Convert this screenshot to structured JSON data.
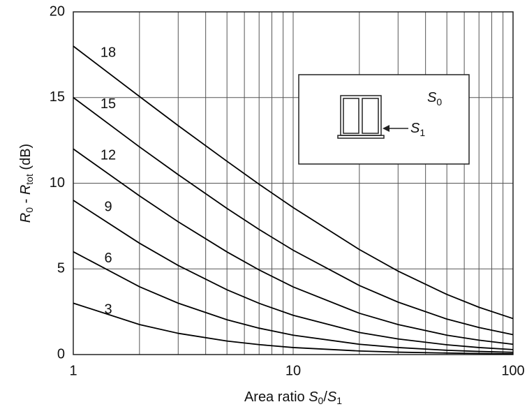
{
  "chart_data": {
    "type": "line",
    "xlabel": [
      "Area ratio ",
      "S",
      "0",
      "/",
      "S",
      "1"
    ],
    "ylabel": [
      "R",
      "0",
      " - ",
      "R",
      "tot",
      "  (dB)"
    ],
    "inset_labels": [
      [
        "S",
        "0"
      ],
      [
        "S",
        "1"
      ]
    ],
    "x": [
      1,
      2,
      3,
      5,
      7,
      10,
      20,
      30,
      50,
      70,
      100
    ],
    "series": [
      {
        "name": "18",
        "color": "#000000",
        "values": [
          18,
          15.06,
          13.36,
          11.28,
          9.94,
          8.58,
          6.13,
          4.87,
          3.51,
          2.76,
          2.1
        ]
      },
      {
        "name": "15",
        "color": "#000000",
        "values": [
          15,
          12.12,
          10.5,
          8.53,
          7.3,
          6.09,
          4.03,
          3.06,
          2.07,
          1.58,
          1.16
        ]
      },
      {
        "name": "12",
        "color": "#000000",
        "values": [
          12,
          9.26,
          7.75,
          5.99,
          4.94,
          3.95,
          2.41,
          1.75,
          1.13,
          0.84,
          0.6
        ]
      },
      {
        "name": "9",
        "color": "#000000",
        "values": [
          9,
          6.5,
          5.2,
          3.78,
          2.99,
          2.29,
          1.29,
          0.91,
          0.57,
          0.41,
          0.29
        ]
      },
      {
        "name": "6",
        "color": "#000000",
        "values": [
          6,
          3.96,
          3.0,
          2.03,
          1.54,
          1.13,
          0.6,
          0.41,
          0.25,
          0.18,
          0.13
        ]
      },
      {
        "name": "3",
        "color": "#000000",
        "values": [
          3,
          1.75,
          1.24,
          0.79,
          0.58,
          0.41,
          0.21,
          0.14,
          0.09,
          0.06,
          0.04
        ]
      }
    ],
    "xscale": "log",
    "xlim": [
      1,
      100
    ],
    "xticks": [
      1,
      10,
      100
    ],
    "xgrid_minor": [
      2,
      3,
      4,
      5,
      6,
      7,
      8,
      9,
      20,
      30,
      40,
      50,
      60,
      70,
      80,
      90
    ],
    "ylim": [
      0,
      20
    ],
    "yticks": [
      0,
      5,
      10,
      15,
      20
    ],
    "grid": true
  }
}
